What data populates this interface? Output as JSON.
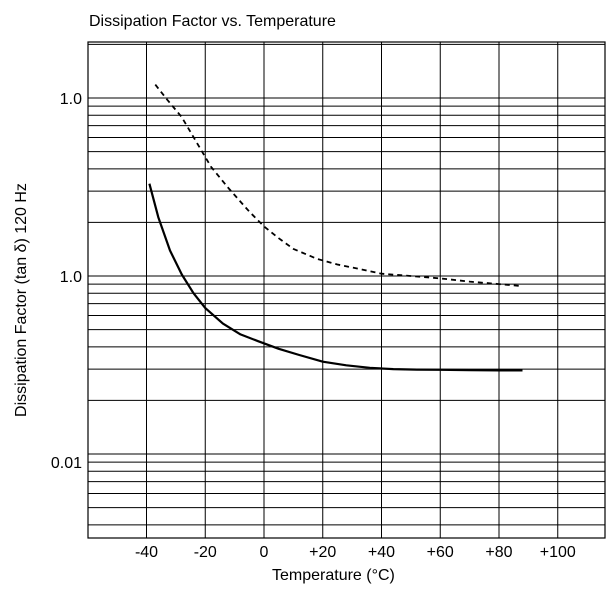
{
  "chart_data": {
    "type": "line",
    "title": "Dissipation Factor vs. Temperature",
    "xlabel": "Temperature (°C)",
    "ylabel": "Dissipation Factor (tan δ) 120 Hz",
    "x_ticks": [
      "-40",
      "-20",
      "0",
      "+20",
      "+40",
      "+60",
      "+80",
      "+100"
    ],
    "y_ticks": [
      "1.0",
      "1.0",
      "0.01"
    ],
    "xlim": [
      -60,
      100
    ],
    "ylim_decades": [
      -2.35,
      0.3
    ],
    "y_scale": "log",
    "grid": true,
    "series": [
      {
        "style": "dashed",
        "x": [
          -37,
          -33,
          -28,
          -22,
          -18,
          -12,
          -5,
          0,
          5,
          10,
          18,
          25,
          33,
          40,
          50,
          60,
          70,
          80,
          87
        ],
        "y": [
          1.19,
          0.98,
          0.78,
          0.53,
          0.41,
          0.31,
          0.23,
          0.19,
          0.163,
          0.142,
          0.125,
          0.116,
          0.109,
          0.103,
          0.1,
          0.097,
          0.093,
          0.09,
          0.088
        ]
      },
      {
        "style": "solid",
        "x": [
          -39,
          -36,
          -32,
          -28,
          -24,
          -20,
          -14,
          -8,
          -2,
          5,
          12,
          20,
          28,
          36,
          44,
          52,
          60,
          70,
          80,
          88
        ],
        "y": [
          0.33,
          0.214,
          0.139,
          0.102,
          0.08,
          0.066,
          0.054,
          0.047,
          0.043,
          0.039,
          0.036,
          0.033,
          0.0315,
          0.0305,
          0.03,
          0.0298,
          0.0297,
          0.0296,
          0.0295,
          0.0295
        ]
      }
    ]
  }
}
